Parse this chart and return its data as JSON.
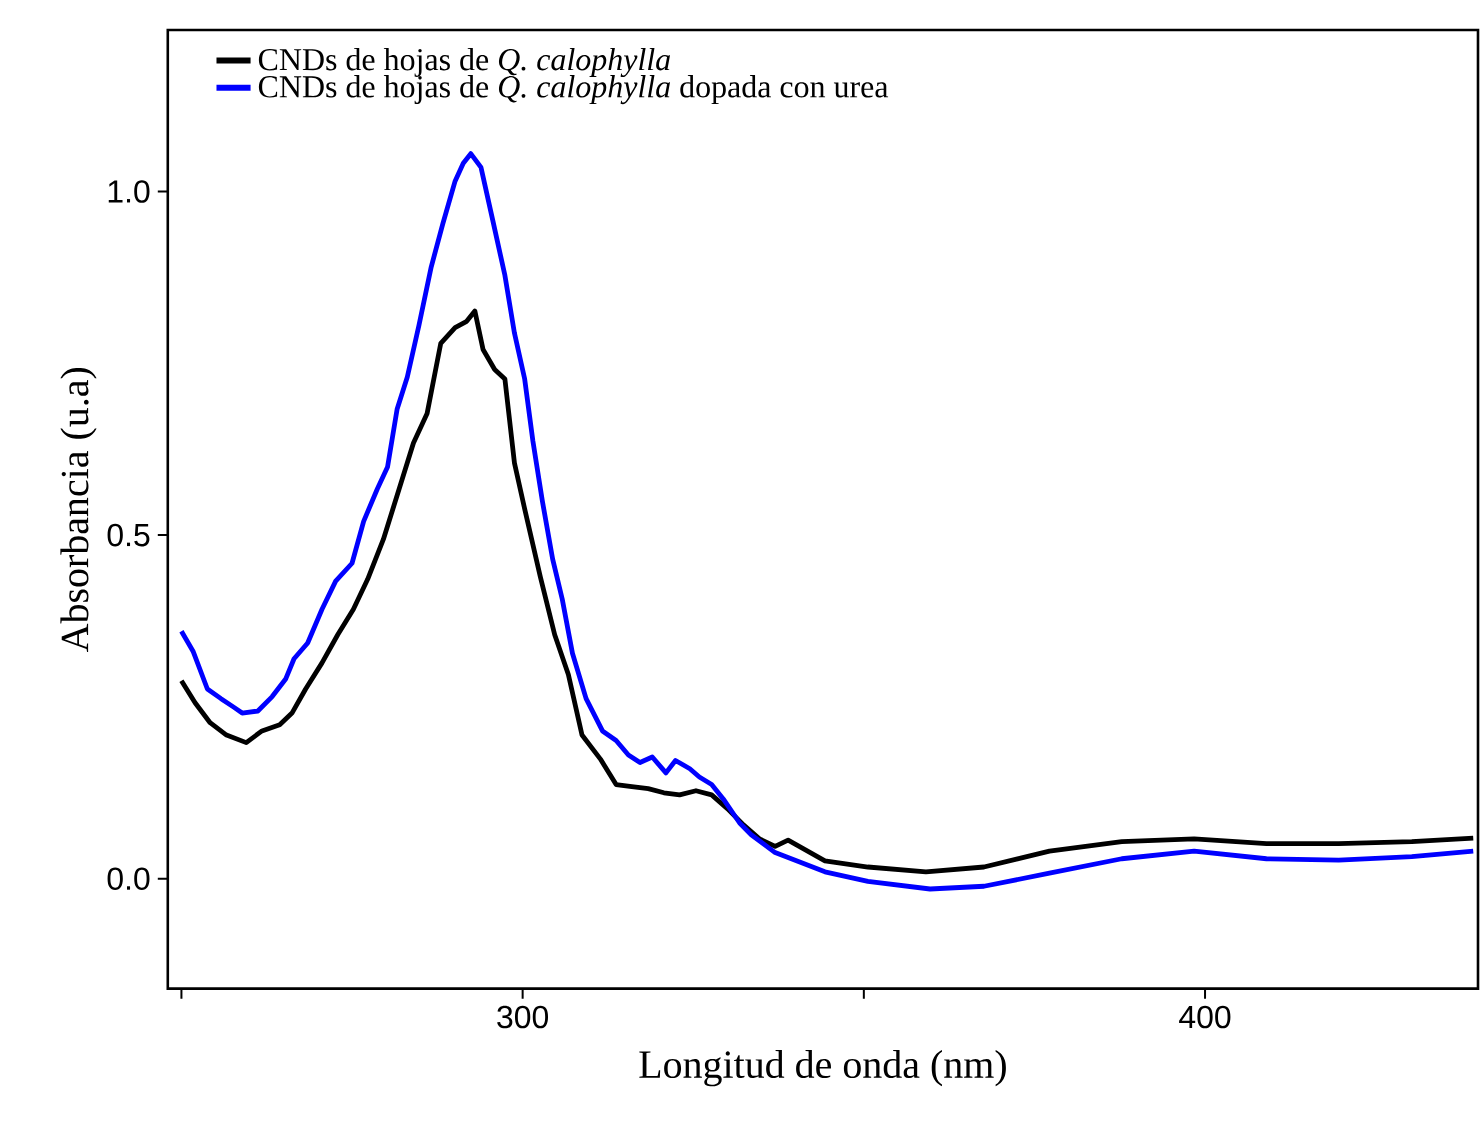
{
  "chart_data": {
    "type": "line",
    "xlabel": "Longitud de onda (nm)",
    "ylabel": "Absorbancia (u.a)",
    "xlim": [
      248,
      440
    ],
    "ylim": [
      -0.16,
      1.235
    ],
    "xticks": [
      {
        "value": 250,
        "label": null
      },
      300,
      {
        "value": 350,
        "label": null
      },
      400
    ],
    "yticks": [
      {
        "value": 0,
        "label": "0.0"
      },
      {
        "value": 0.5,
        "label": "0.5"
      },
      {
        "value": 1,
        "label": "1.0"
      }
    ],
    "legend": "top left",
    "marker": "none",
    "series": [
      {
        "name": "CNDs de hojas de *Q. calophylla*",
        "color": "#000000",
        "x": [
          250,
          252,
          254.2,
          256.6,
          259.5,
          261.8,
          264.4,
          266.2,
          268.2,
          270.6,
          272.9,
          275.2,
          277.3,
          279.6,
          281.9,
          284.0,
          286.0,
          288.0,
          290.1,
          291.8,
          293.0,
          294.2,
          295.9,
          297.4,
          298.8,
          300.3,
          302.6,
          304.7,
          306.7,
          308.7,
          311.4,
          313.7,
          316.0,
          318.4,
          320.7,
          323.0,
          325.4,
          327.7,
          330.0,
          332.4,
          334.7,
          337.0,
          338.9,
          344.3,
          350.6,
          359.1,
          367.6,
          377.2,
          387.8,
          398.4,
          409.0,
          419.6,
          430.3,
          439.3
        ],
        "values": [
          0.288,
          0.256,
          0.227,
          0.209,
          0.198,
          0.215,
          0.224,
          0.241,
          0.276,
          0.314,
          0.355,
          0.392,
          0.436,
          0.494,
          0.567,
          0.634,
          0.677,
          0.779,
          0.802,
          0.811,
          0.826,
          0.77,
          0.741,
          0.727,
          0.605,
          0.538,
          0.439,
          0.355,
          0.297,
          0.209,
          0.174,
          0.137,
          0.134,
          0.131,
          0.125,
          0.122,
          0.128,
          0.122,
          0.102,
          0.078,
          0.058,
          0.047,
          0.056,
          0.026,
          0.017,
          0.01,
          0.017,
          0.04,
          0.054,
          0.058,
          0.051,
          0.051,
          0.054,
          0.059
        ]
      },
      {
        "name": "CNDs de hojas de *Q. calophylla* dopada con urea",
        "color": "#0000ff",
        "x": [
          250,
          251.7,
          253.8,
          255.8,
          257.6,
          258.9,
          261.2,
          263.3,
          265.3,
          266.5,
          268.5,
          270.6,
          272.6,
          275.0,
          276.7,
          278.7,
          280.2,
          281.6,
          283.1,
          284.8,
          286.6,
          288.3,
          290.1,
          291.3,
          292.4,
          293.9,
          295.6,
          297.4,
          298.8,
          300.3,
          301.5,
          302.9,
          304.4,
          305.8,
          307.3,
          309.3,
          311.7,
          313.7,
          315.5,
          317.2,
          319.0,
          321.0,
          322.4,
          324.5,
          325.9,
          327.7,
          329.4,
          331.8,
          333.5,
          337.0,
          344.3,
          350.6,
          359.7,
          367.6,
          377.2,
          387.8,
          398.4,
          409.0,
          419.6,
          430.3,
          439.3
        ],
        "values": [
          0.36,
          0.331,
          0.276,
          0.262,
          0.25,
          0.241,
          0.244,
          0.265,
          0.291,
          0.32,
          0.343,
          0.392,
          0.433,
          0.459,
          0.52,
          0.567,
          0.599,
          0.683,
          0.73,
          0.805,
          0.89,
          0.953,
          1.015,
          1.041,
          1.055,
          1.035,
          0.959,
          0.878,
          0.794,
          0.727,
          0.637,
          0.549,
          0.465,
          0.407,
          0.328,
          0.262,
          0.215,
          0.201,
          0.18,
          0.169,
          0.177,
          0.154,
          0.172,
          0.16,
          0.148,
          0.137,
          0.116,
          0.081,
          0.064,
          0.038,
          0.01,
          -0.004,
          -0.015,
          -0.011,
          0.008,
          0.029,
          0.04,
          0.029,
          0.027,
          0.032,
          0.04
        ]
      }
    ]
  }
}
